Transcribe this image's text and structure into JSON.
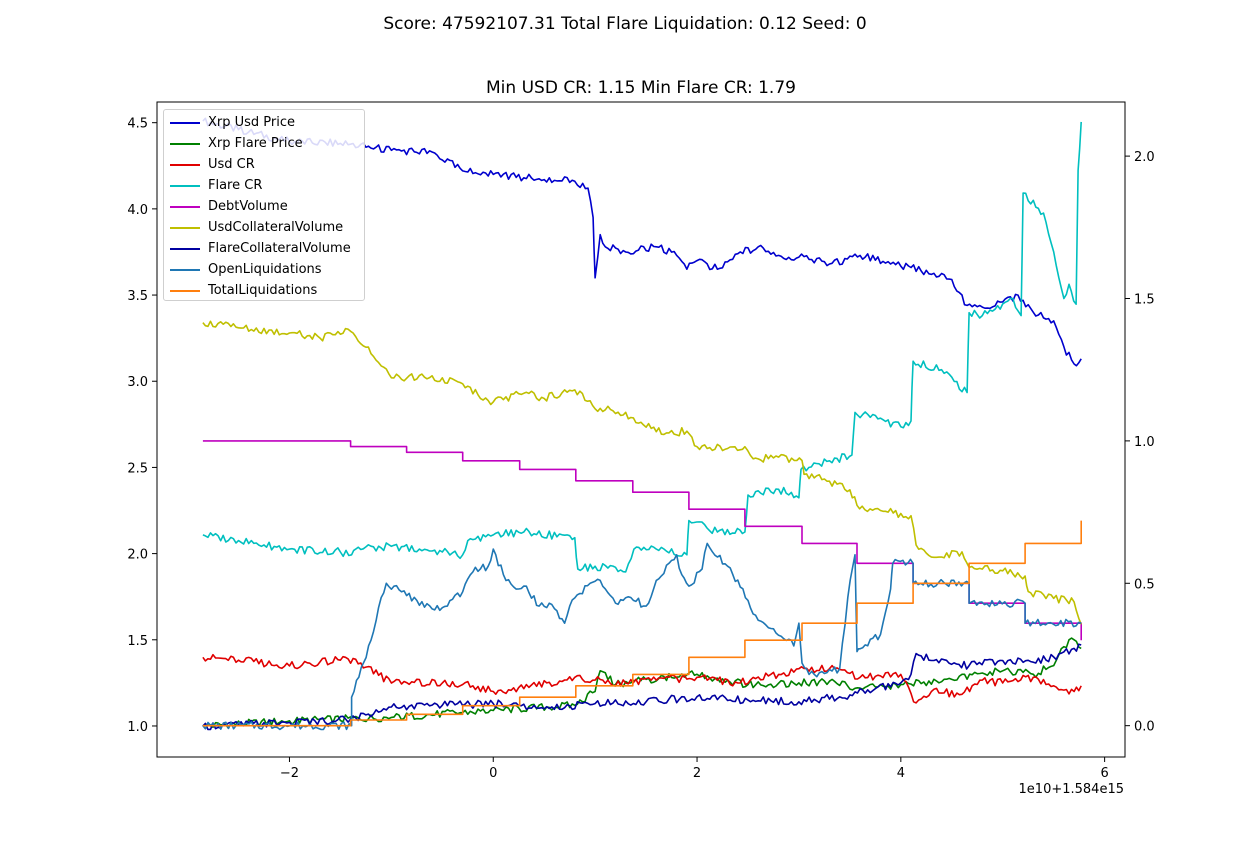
{
  "suptitle": "Score: 47592107.31 Total Flare Liquidation: 0.12 Seed: 0",
  "axes_title": "Min USD CR: 1.15 Min Flare CR: 1.79",
  "x_offset_label": "1e10+1.584e15",
  "chart_data": {
    "type": "line",
    "title": "Min USD CR: 1.15 Min Flare CR: 1.79",
    "xlim": [
      -3.3,
      6.2
    ],
    "ylim_left": [
      0.82,
      4.62
    ],
    "ylim_right": [
      -0.11,
      2.19
    ],
    "x_ticks": [
      -2,
      0,
      2,
      4,
      6
    ],
    "x_tick_labels": [
      "−2",
      "0",
      "2",
      "4",
      "6"
    ],
    "y_left_ticks": [
      1.0,
      1.5,
      2.0,
      2.5,
      3.0,
      3.5,
      4.0,
      4.5
    ],
    "y_left_tick_labels": [
      "1.0",
      "1.5",
      "2.0",
      "2.5",
      "3.0",
      "3.5",
      "4.0",
      "4.5"
    ],
    "y_right_ticks": [
      0.0,
      0.5,
      1.0,
      1.5,
      2.0
    ],
    "y_right_tick_labels": [
      "0.0",
      "0.5",
      "1.0",
      "1.5",
      "2.0"
    ],
    "grid": false,
    "legend_position": "upper-left",
    "series": [
      {
        "name": "Xrp Usd Price",
        "color": "#0000cd",
        "axis": "left",
        "x": [
          -2.85,
          -2.5,
          -2.0,
          -1.5,
          -1.0,
          -0.6,
          -0.3,
          0.0,
          0.3,
          0.5,
          0.8,
          0.93,
          0.98,
          1.0,
          1.05,
          1.1,
          1.3,
          1.6,
          1.8,
          1.9,
          2.0,
          2.2,
          2.4,
          2.6,
          2.8,
          3.0,
          3.3,
          3.6,
          3.9,
          4.1,
          4.3,
          4.5,
          4.65,
          4.8,
          5.0,
          5.15,
          5.3,
          5.5,
          5.6,
          5.7,
          5.77
        ],
        "y": [
          4.51,
          4.46,
          4.39,
          4.38,
          4.34,
          4.33,
          4.22,
          4.2,
          4.18,
          4.17,
          4.16,
          4.12,
          3.95,
          3.6,
          3.85,
          3.78,
          3.75,
          3.78,
          3.73,
          3.65,
          3.7,
          3.65,
          3.74,
          3.78,
          3.73,
          3.72,
          3.68,
          3.73,
          3.68,
          3.66,
          3.62,
          3.59,
          3.44,
          3.43,
          3.46,
          3.5,
          3.4,
          3.35,
          3.2,
          3.1,
          3.13
        ]
      },
      {
        "name": "Xrp Flare Price",
        "color": "#008000",
        "axis": "left",
        "x": [
          -2.85,
          -2.0,
          -1.0,
          0.0,
          0.8,
          1.0,
          1.05,
          1.2,
          1.5,
          2.0,
          2.5,
          3.0,
          3.3,
          3.6,
          4.0,
          4.5,
          5.0,
          5.3,
          5.5,
          5.6,
          5.7,
          5.77
        ],
        "y": [
          1.0,
          1.03,
          1.05,
          1.09,
          1.12,
          1.2,
          1.32,
          1.24,
          1.27,
          1.3,
          1.24,
          1.25,
          1.26,
          1.22,
          1.24,
          1.27,
          1.32,
          1.3,
          1.35,
          1.46,
          1.5,
          1.45
        ]
      },
      {
        "name": "Usd CR",
        "color": "#e00000",
        "axis": "right",
        "x": [
          -2.85,
          -2.5,
          -2.0,
          -1.5,
          -1.3,
          -1.0,
          -0.5,
          -0.2,
          0.0,
          0.3,
          0.8,
          1.0,
          1.3,
          1.6,
          2.0,
          2.4,
          2.8,
          3.0,
          3.3,
          3.6,
          4.0,
          4.15,
          4.3,
          4.6,
          4.8,
          5.0,
          5.3,
          5.5,
          5.7,
          5.77
        ],
        "y": [
          0.24,
          0.23,
          0.21,
          0.23,
          0.22,
          0.15,
          0.15,
          0.14,
          0.12,
          0.13,
          0.17,
          0.16,
          0.15,
          0.16,
          0.17,
          0.15,
          0.18,
          0.2,
          0.2,
          0.17,
          0.18,
          0.08,
          0.12,
          0.11,
          0.16,
          0.15,
          0.17,
          0.14,
          0.12,
          0.14
        ]
      },
      {
        "name": "Flare CR",
        "color": "#00bfbf",
        "axis": "right",
        "x": [
          -2.85,
          -2.5,
          -2.0,
          -1.5,
          -1.39,
          -1.35,
          -1.0,
          -0.5,
          -0.3,
          -0.25,
          0.0,
          0.3,
          0.8,
          0.83,
          1.0,
          1.3,
          1.38,
          1.6,
          1.9,
          1.92,
          2.2,
          2.47,
          2.5,
          2.8,
          3.0,
          3.02,
          3.3,
          3.52,
          3.55,
          4.0,
          4.1,
          4.12,
          4.4,
          4.65,
          4.67,
          4.8,
          5.1,
          5.18,
          5.2,
          5.4,
          5.6,
          5.65,
          5.72,
          5.74,
          5.77
        ],
        "y": [
          0.67,
          0.65,
          0.62,
          0.61,
          0.6,
          0.62,
          0.63,
          0.61,
          0.6,
          0.65,
          0.67,
          0.68,
          0.66,
          0.55,
          0.56,
          0.54,
          0.62,
          0.62,
          0.6,
          0.72,
          0.68,
          0.68,
          0.81,
          0.83,
          0.8,
          0.9,
          0.93,
          0.95,
          1.1,
          1.05,
          1.07,
          1.28,
          1.25,
          1.17,
          1.45,
          1.44,
          1.5,
          1.44,
          1.87,
          1.8,
          1.5,
          1.55,
          1.48,
          1.95,
          2.12
        ]
      },
      {
        "name": "DebtVolume",
        "color": "#bf00bf",
        "axis": "right",
        "x": [
          -2.85,
          -1.4,
          -1.4,
          -0.85,
          -0.85,
          -0.3,
          -0.3,
          0.26,
          0.26,
          0.81,
          0.81,
          1.37,
          1.37,
          1.92,
          1.92,
          2.47,
          2.47,
          3.03,
          3.03,
          3.57,
          3.57,
          4.12,
          4.12,
          4.67,
          4.67,
          5.22,
          5.22,
          5.77,
          5.77
        ],
        "y": [
          1.0,
          1.0,
          0.98,
          0.98,
          0.96,
          0.96,
          0.93,
          0.93,
          0.9,
          0.9,
          0.86,
          0.86,
          0.82,
          0.82,
          0.76,
          0.76,
          0.7,
          0.7,
          0.64,
          0.64,
          0.57,
          0.57,
          0.5,
          0.5,
          0.43,
          0.43,
          0.36,
          0.36,
          0.3
        ]
      },
      {
        "name": "UsdCollateralVolume",
        "color": "#bfbf00",
        "axis": "left",
        "x": [
          -2.85,
          -2.5,
          -2.0,
          -1.7,
          -1.4,
          -1.2,
          -1.0,
          -0.5,
          0.0,
          0.3,
          0.5,
          0.8,
          1.0,
          1.3,
          1.4,
          1.7,
          1.9,
          2.0,
          2.3,
          2.47,
          2.55,
          2.8,
          3.03,
          3.05,
          3.3,
          3.5,
          3.57,
          3.8,
          4.1,
          4.15,
          4.3,
          4.6,
          4.67,
          4.8,
          5.0,
          5.22,
          5.25,
          5.5,
          5.7,
          5.77
        ],
        "y": [
          3.34,
          3.31,
          3.28,
          3.25,
          3.29,
          3.16,
          3.02,
          3.02,
          2.88,
          2.93,
          2.9,
          2.95,
          2.84,
          2.82,
          2.76,
          2.7,
          2.71,
          2.62,
          2.61,
          2.62,
          2.55,
          2.56,
          2.54,
          2.46,
          2.42,
          2.37,
          2.28,
          2.25,
          2.22,
          2.05,
          1.98,
          2.01,
          1.92,
          1.91,
          1.9,
          1.87,
          1.78,
          1.74,
          1.72,
          1.59
        ]
      },
      {
        "name": "FlareCollateralVolume",
        "color": "#0000a0",
        "axis": "left",
        "x": [
          -2.85,
          -2.0,
          -1.4,
          -1.0,
          -0.5,
          0.0,
          0.5,
          1.0,
          1.5,
          2.0,
          2.5,
          3.0,
          3.5,
          4.0,
          4.1,
          4.15,
          4.3,
          4.67,
          5.0,
          5.3,
          5.5,
          5.6,
          5.7,
          5.77
        ],
        "y": [
          1.0,
          1.02,
          1.04,
          1.11,
          1.12,
          1.13,
          1.1,
          1.13,
          1.14,
          1.17,
          1.15,
          1.14,
          1.18,
          1.25,
          1.3,
          1.42,
          1.38,
          1.35,
          1.38,
          1.37,
          1.4,
          1.43,
          1.45,
          1.47
        ]
      },
      {
        "name": "OpenLiquidations",
        "color": "#1f77b4",
        "axis": "right",
        "x": [
          -2.85,
          -1.39,
          -1.39,
          -1.2,
          -1.1,
          -1.05,
          -0.9,
          -0.75,
          -0.6,
          -0.45,
          -0.3,
          -0.2,
          -0.05,
          0.0,
          0.1,
          0.25,
          0.3,
          0.45,
          0.55,
          0.7,
          0.75,
          0.95,
          1.05,
          1.2,
          1.35,
          1.5,
          1.6,
          1.8,
          1.85,
          1.92,
          2.05,
          2.1,
          2.3,
          2.5,
          2.6,
          2.75,
          2.95,
          3.0,
          3.03,
          3.1,
          3.4,
          3.48,
          3.55,
          3.57,
          3.6,
          3.8,
          3.9,
          3.92,
          4.12,
          4.12,
          4.67,
          4.67,
          5.22,
          5.22,
          5.77
        ],
        "y": [
          0.0,
          0.0,
          0.1,
          0.3,
          0.45,
          0.5,
          0.47,
          0.44,
          0.41,
          0.42,
          0.47,
          0.54,
          0.56,
          0.62,
          0.53,
          0.48,
          0.49,
          0.42,
          0.43,
          0.36,
          0.42,
          0.5,
          0.51,
          0.43,
          0.45,
          0.42,
          0.51,
          0.6,
          0.53,
          0.49,
          0.55,
          0.64,
          0.56,
          0.44,
          0.37,
          0.34,
          0.28,
          0.36,
          0.22,
          0.18,
          0.2,
          0.45,
          0.6,
          0.26,
          0.27,
          0.32,
          0.48,
          0.57,
          0.57,
          0.5,
          0.5,
          0.43,
          0.43,
          0.36,
          0.36
        ]
      },
      {
        "name": "TotalLiquidations",
        "color": "#ff7f0e",
        "axis": "right",
        "x": [
          -2.85,
          -1.4,
          -1.4,
          -0.85,
          -0.85,
          -0.3,
          -0.3,
          0.26,
          0.26,
          0.81,
          0.81,
          1.37,
          1.37,
          1.92,
          1.92,
          2.47,
          2.47,
          3.03,
          3.03,
          3.57,
          3.57,
          4.12,
          4.12,
          4.67,
          4.67,
          5.22,
          5.22,
          5.77,
          5.77
        ],
        "y": [
          0.0,
          0.0,
          0.02,
          0.02,
          0.04,
          0.04,
          0.07,
          0.07,
          0.1,
          0.1,
          0.14,
          0.14,
          0.18,
          0.18,
          0.24,
          0.24,
          0.3,
          0.3,
          0.36,
          0.36,
          0.43,
          0.43,
          0.5,
          0.5,
          0.57,
          0.57,
          0.64,
          0.64,
          0.72
        ]
      }
    ]
  }
}
